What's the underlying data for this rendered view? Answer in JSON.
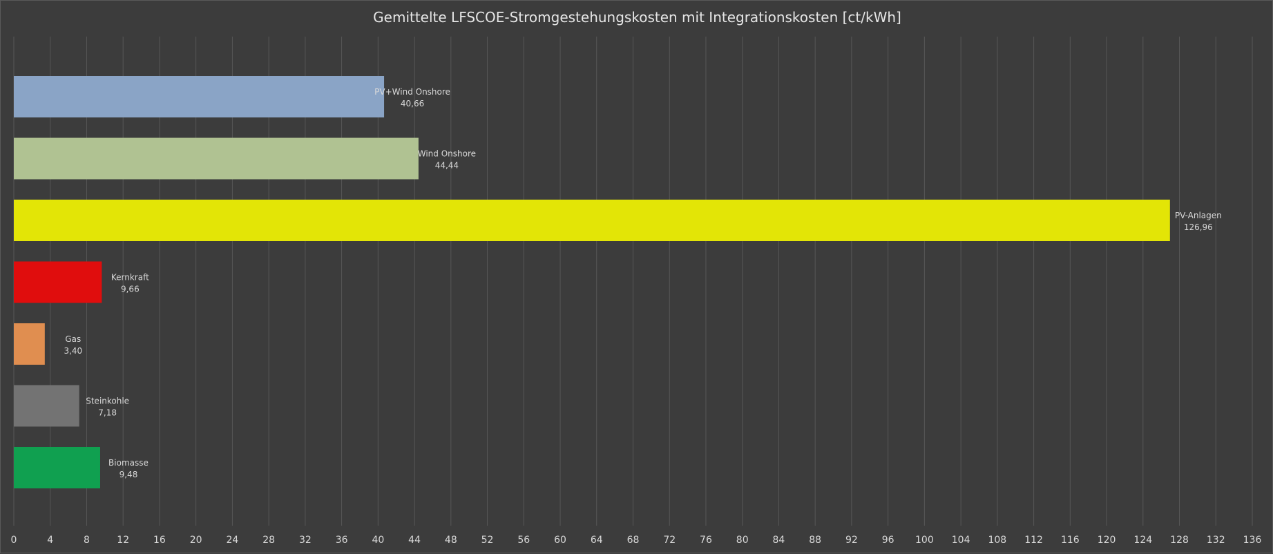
{
  "chart_data": {
    "type": "bar",
    "orientation": "horizontal",
    "title": "Gemittelte LFSCOE-Stromgestehungskosten  mit Integrationskosten  [ct/kWh]",
    "xlabel": "",
    "ylabel": "",
    "xlim": [
      0,
      136
    ],
    "x_ticks": [
      0,
      4,
      8,
      12,
      16,
      20,
      24,
      28,
      32,
      36,
      40,
      44,
      48,
      52,
      56,
      60,
      64,
      68,
      72,
      76,
      80,
      84,
      88,
      92,
      96,
      100,
      104,
      108,
      112,
      116,
      120,
      124,
      128,
      132,
      136
    ],
    "grid": "vertical",
    "legend": "none",
    "categories": [
      "PV+Wind Onshore",
      "Wind Onshore",
      "PV-Anlagen",
      "Kernkraft",
      "Gas",
      "Steinkohle",
      "Biomasse"
    ],
    "values": [
      40.66,
      44.44,
      126.96,
      9.66,
      3.4,
      7.18,
      9.48
    ],
    "value_labels": [
      "40,66",
      "44,44",
      "126,96",
      "9,66",
      "3,40",
      "7,18",
      "9,48"
    ],
    "colors": [
      "#8aa4c6",
      "#b0c292",
      "#e3e506",
      "#e00d0d",
      "#e08e50",
      "#737373",
      "#10a050"
    ]
  }
}
